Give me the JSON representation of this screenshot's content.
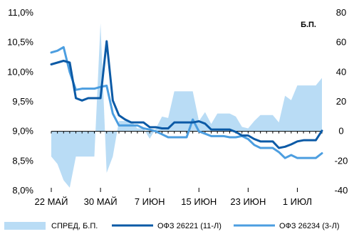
{
  "chart_data": {
    "type": "line",
    "x": [
      "22.05",
      "23.05",
      "24.05",
      "25.05",
      "26.05",
      "27.05",
      "28.05",
      "29.05",
      "30.05",
      "31.05",
      "01.06",
      "02.06",
      "03.06",
      "04.06",
      "05.06",
      "06.06",
      "07.06",
      "08.06",
      "09.06",
      "10.06",
      "11.06",
      "12.06",
      "13.06",
      "14.06",
      "15.06",
      "16.06",
      "17.06",
      "18.06",
      "19.06",
      "20.06",
      "21.06",
      "22.06",
      "23.06",
      "24.06",
      "25.06",
      "26.06",
      "27.06",
      "28.06",
      "29.06",
      "30.06",
      "01.07",
      "02.07",
      "03.07",
      "04.07",
      "05.07"
    ],
    "x_tick_labels": [
      "22 МАЙ",
      "30 МАЙ",
      "7 ИЮН",
      "15 ИЮН",
      "23 ИЮН",
      "1 ИЮЛ"
    ],
    "y_left": {
      "ylim": [
        8.0,
        11.0
      ],
      "ticks": [
        "8,0%",
        "8,5%",
        "9,0%",
        "9,5%",
        "10,0%",
        "10,5%",
        "11,0%"
      ]
    },
    "y_right": {
      "ylim": [
        -40,
        80
      ],
      "unit_label": "Б.П.",
      "ticks": [
        "-40",
        "-20",
        "0",
        "20",
        "40",
        "60",
        "80"
      ]
    },
    "series": [
      {
        "name": "СПРЕД, Б.П.",
        "kind": "area",
        "axis": "right",
        "color": "#b9dcf5",
        "values": [
          -17,
          -22,
          -33,
          -38,
          -17,
          -17,
          -17,
          -17,
          73,
          -28,
          -17,
          7,
          7,
          7,
          2,
          2,
          -5,
          2,
          10,
          9,
          27,
          27,
          27,
          27,
          7,
          13,
          5,
          12,
          12,
          12,
          10,
          3,
          2,
          7,
          11,
          11,
          11,
          6,
          24,
          21,
          31,
          31,
          31,
          31,
          36
        ]
      },
      {
        "name": "ОФЗ 26221 (11-Л)",
        "kind": "line",
        "axis": "left",
        "color": "#0b5aa6",
        "values": [
          10.13,
          10.16,
          10.19,
          10.16,
          9.56,
          9.52,
          9.56,
          9.56,
          9.56,
          10.52,
          9.52,
          9.27,
          9.2,
          9.15,
          9.15,
          9.15,
          9.07,
          9.07,
          9.05,
          9.05,
          9.15,
          9.15,
          9.15,
          9.15,
          9.17,
          9.13,
          9.03,
          9.03,
          9.03,
          9.03,
          8.99,
          8.93,
          8.93,
          8.87,
          8.83,
          8.83,
          8.83,
          8.72,
          8.74,
          8.78,
          8.83,
          8.85,
          8.85,
          8.85,
          9.01
        ]
      },
      {
        "name": "ОФЗ 26234 (3-Л)",
        "kind": "line",
        "axis": "left",
        "color": "#4c9ee0",
        "values": [
          10.33,
          10.36,
          10.42,
          10.0,
          9.7,
          9.72,
          9.72,
          9.72,
          9.75,
          9.77,
          9.3,
          9.1,
          9.1,
          9.1,
          9.1,
          9.05,
          9.03,
          9.0,
          8.95,
          8.9,
          8.9,
          8.9,
          8.9,
          9.2,
          9.0,
          8.96,
          8.92,
          8.92,
          8.92,
          8.9,
          8.9,
          8.92,
          8.87,
          8.77,
          8.72,
          8.72,
          8.72,
          8.65,
          8.55,
          8.6,
          8.55,
          8.55,
          8.55,
          8.55,
          8.63
        ]
      }
    ],
    "legend_position": "bottom",
    "grid": false
  }
}
